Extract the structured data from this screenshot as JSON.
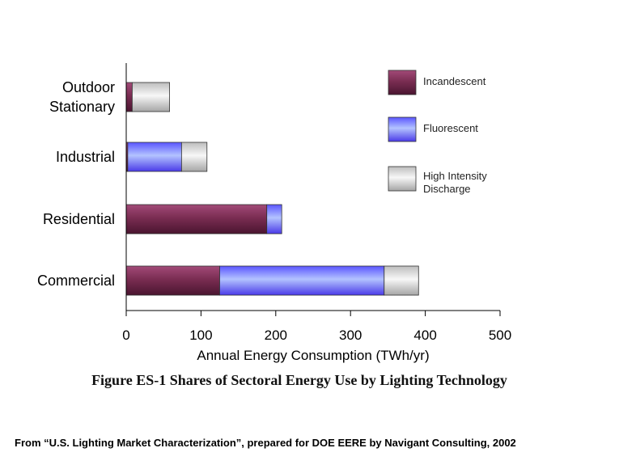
{
  "chart_data": {
    "type": "bar",
    "orientation": "horizontal",
    "stacked": true,
    "categories": [
      "Outdoor Stationary",
      "Industrial",
      "Residential",
      "Commercial"
    ],
    "category_lines": [
      [
        "Outdoor",
        "Stationary"
      ],
      [
        "Industrial"
      ],
      [
        "Residential"
      ],
      [
        "Commercial"
      ]
    ],
    "series": [
      {
        "name": "Incandescent",
        "color": "#7a2d52",
        "values": [
          8,
          2,
          188,
          125
        ]
      },
      {
        "name": "Fluorescent",
        "color": "#7f86ff",
        "values": [
          0,
          72,
          20,
          220
        ]
      },
      {
        "name": "High Intensity Discharge",
        "color": "#d6d6d6",
        "values": [
          50,
          34,
          0,
          46
        ]
      }
    ],
    "legend_lines": [
      [
        "Incandescent"
      ],
      [
        "Fluorescent"
      ],
      [
        "High Intensity",
        "Discharge"
      ]
    ],
    "xlabel": "Annual Energy Consumption (TWh/yr)",
    "xlim": [
      0,
      500
    ],
    "xticks": [
      "0",
      "100",
      "200",
      "300",
      "400",
      "500"
    ],
    "legend_position": "top-right",
    "grid": false
  },
  "figure_title": "Figure ES-1 Shares of Sectoral Energy Use by Lighting Technology",
  "source_note": "From “U.S. Lighting Market Characterization”, prepared for DOE EERE by Navigant Consulting, 2002"
}
